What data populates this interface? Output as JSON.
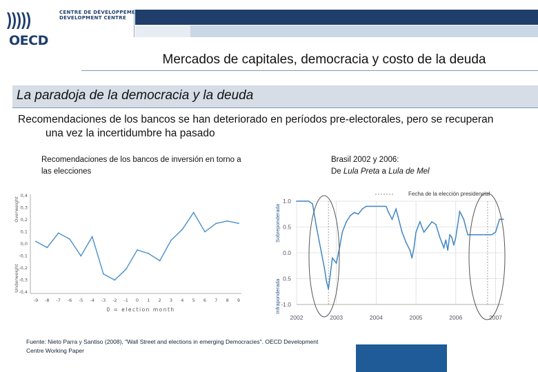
{
  "header": {
    "logo_text": "OECD",
    "centre_name": "CENTRE DE DÉVELOPPEMENT\nDEVELOPMENT CENTRE",
    "title": "Mercados de capitales, democracia y costo de la deuda",
    "colors": {
      "brand_dark": "#1f3e6b",
      "band_light": "#c9d7e6"
    }
  },
  "section": {
    "title": "La paradoja de la democracia y la deuda",
    "body": "Recomendaciones de los bancos se han deteriorado en períodos pre-electorales, pero se recuperan una vez la incertidumbre ha pasado"
  },
  "left_chart": {
    "caption": "Recomendaciones de los bancos de inversión en torno a las elecciones",
    "ylabel_top": "Overweight",
    "ylabel_bottom": "Underweight",
    "xlabel": "0 = election month"
  },
  "right_chart": {
    "caption_line1": "Brasil 2002 y 2006:",
    "caption_prefix": "De ",
    "caption_from": "Lula Preta",
    "caption_mid": " a ",
    "caption_to": "Lula de Mel",
    "legend": "Fecha de la elección presidencial",
    "ylabel_top": "Sobreponderada",
    "ylabel_bottom": "Infraponderada"
  },
  "chart_data": [
    {
      "type": "line",
      "x": [
        -9,
        -8,
        -7,
        -6,
        -5,
        -4,
        -3,
        -2,
        -1,
        0,
        1,
        2,
        3,
        4,
        5,
        6,
        7,
        8,
        9
      ],
      "y_tick_labels": [
        "0,4",
        "0,3",
        "0,2",
        "0,1",
        "0,0",
        "-0,1",
        "-0,2",
        "-0,3",
        "-0,4"
      ],
      "x_tick_labels": [
        "-9",
        "-8",
        "-7",
        "-6",
        "-5",
        "-4",
        "-3",
        "-2",
        "-1",
        "0",
        "1",
        "2",
        "3",
        "4",
        "5",
        "6",
        "7",
        "8",
        "9"
      ],
      "series": [
        {
          "values": [
            0.02,
            -0.03,
            0.09,
            0.04,
            -0.1,
            0.06,
            -0.25,
            -0.3,
            -0.21,
            -0.05,
            -0.08,
            -0.14,
            0.03,
            0.12,
            0.26,
            0.1,
            0.17,
            0.19,
            0.17
          ]
        }
      ],
      "ylim": [
        -0.4,
        0.4
      ],
      "xlabel": "0 = election month",
      "ylabel": "Overweight / Underweight",
      "grid": false,
      "color": "#4a8fc9"
    },
    {
      "type": "line",
      "y_tick_labels": [
        "1.0",
        "0.5",
        "0.0",
        "0.5",
        "-1.0"
      ],
      "x_tick_labels": [
        "2002",
        "2003",
        "2004",
        "2005",
        "2006",
        "2007"
      ],
      "x_range": [
        2002.0,
        2007.2
      ],
      "ylim": [
        -1.0,
        1.0
      ],
      "election_dates": [
        2002.8,
        2006.8
      ],
      "series": [
        {
          "x": [
            2002.0,
            2002.1,
            2002.2,
            2002.3,
            2002.4,
            2002.5,
            2002.6,
            2002.7,
            2002.75,
            2002.8,
            2002.85,
            2002.9,
            2003.0,
            2003.08,
            2003.15,
            2003.25,
            2003.35,
            2003.45,
            2003.55,
            2003.65,
            2003.75,
            2003.85,
            2003.95,
            2004.05,
            2004.15,
            2004.25,
            2004.3,
            2004.4,
            2004.5,
            2004.55,
            2004.65,
            2004.75,
            2004.85,
            2004.9,
            2004.95,
            2005.0,
            2005.1,
            2005.2,
            2005.3,
            2005.4,
            2005.5,
            2005.6,
            2005.7,
            2005.75,
            2005.8,
            2005.85,
            2005.9,
            2005.95,
            2006.0,
            2006.1,
            2006.2,
            2006.3,
            2006.4,
            2006.5,
            2006.6,
            2006.7,
            2006.8,
            2006.9,
            2007.0,
            2007.1,
            2007.2
          ],
          "y": [
            1.0,
            1.0,
            1.0,
            1.0,
            0.95,
            0.5,
            0.1,
            -0.3,
            -0.55,
            -0.7,
            -0.4,
            -0.1,
            -0.2,
            0.1,
            0.4,
            0.6,
            0.72,
            0.78,
            0.75,
            0.85,
            0.9,
            0.9,
            0.9,
            0.9,
            0.9,
            0.9,
            0.8,
            0.65,
            0.85,
            0.7,
            0.4,
            0.2,
            0.05,
            -0.1,
            0.1,
            0.4,
            0.6,
            0.4,
            0.5,
            0.6,
            0.55,
            0.3,
            0.1,
            0.25,
            0.05,
            0.35,
            0.3,
            0.15,
            0.3,
            0.8,
            0.65,
            0.35,
            0.35,
            0.35,
            0.35,
            0.35,
            0.35,
            0.35,
            0.4,
            0.65,
            0.65
          ]
        }
      ],
      "legend": "Fecha de la elección presidencial",
      "grid": true,
      "color": "#3f86c4"
    }
  ],
  "footer": {
    "source": "Fuente: Nieto Parra y Santiso (2008), \"Wall Street and elections in emerging Democracies\". OECD Development Centre Working Paper"
  }
}
